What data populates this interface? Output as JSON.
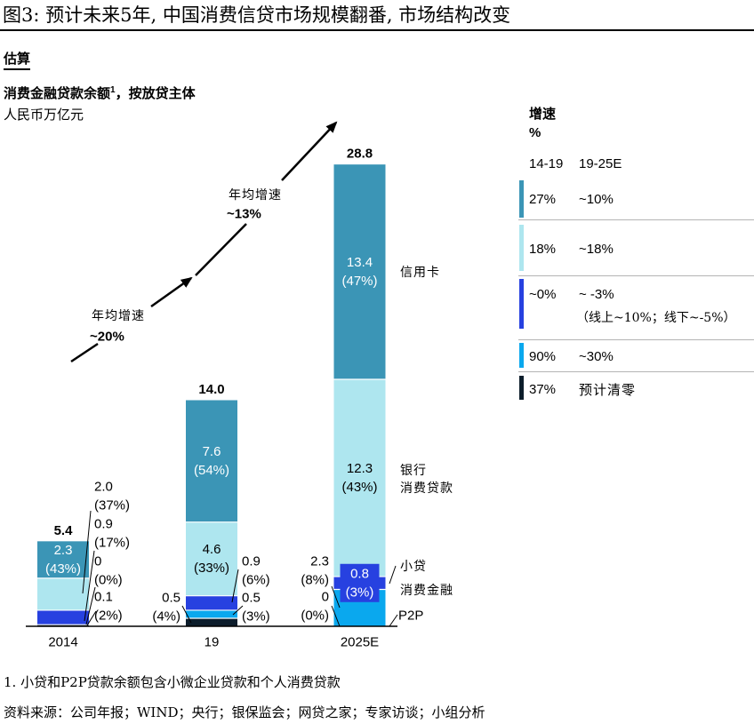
{
  "header": {
    "figure_title": "图3: 预计未来5年, 中国消费信贷市场规模翻番, 市场结构改变",
    "estimate_label": "估算"
  },
  "chart_data": {
    "type": "bar",
    "stacked": true,
    "title": "消费金融贷款余额",
    "title_footnote_ref": "1",
    "title_suffix": "，按放贷主体",
    "ylabel": "人民币万亿元",
    "xlabel": "",
    "ylim": [
      0,
      30
    ],
    "grid": false,
    "categories": [
      "2014",
      "19",
      "2025E"
    ],
    "totals": [
      "5.4",
      "14.0",
      "28.8"
    ],
    "series": [
      {
        "label_lines": [
          "P2P"
        ],
        "color": "#0c1d2b",
        "values": [
          0.1,
          0.5,
          0
        ],
        "labels": [
          "0.1",
          "0.5",
          "0"
        ],
        "shares": [
          "(2%)",
          "(4%)",
          "(0%)"
        ]
      },
      {
        "label_lines": [
          "消费金融"
        ],
        "color": "#0aa8ee",
        "values": [
          0,
          0.5,
          2.3
        ],
        "labels": [
          "0",
          "0.5",
          "2.3"
        ],
        "shares": [
          "(0%)",
          "(3%)",
          "(8%)"
        ]
      },
      {
        "label_lines": [
          "小贷"
        ],
        "color": "#2741e0",
        "values": [
          0.9,
          0.9,
          0.8
        ],
        "labels": [
          "0.9",
          "0.9",
          "0.8"
        ],
        "shares": [
          "(17%)",
          "(6%)",
          "(3%)"
        ]
      },
      {
        "label_lines": [
          "银行",
          "消费贷款"
        ],
        "color": "#aee6ef",
        "values": [
          2.0,
          4.6,
          12.3
        ],
        "labels": [
          "2.0",
          "4.6",
          "12.3"
        ],
        "shares": [
          "(37%)",
          "(33%)",
          "(43%)"
        ]
      },
      {
        "label_lines": [
          "信用卡"
        ],
        "color": "#3b95b6",
        "values": [
          2.3,
          7.6,
          13.4
        ],
        "labels": [
          "2.3",
          "7.6",
          "13.4"
        ],
        "shares": [
          "(43%)",
          "(54%)",
          "(47%)"
        ]
      }
    ],
    "annotations": [
      {
        "label": "年均增速",
        "value": "~20%"
      },
      {
        "label": "年均增速",
        "value": "~13%"
      }
    ],
    "growth_legend": {
      "title": "增速",
      "unit": "%",
      "headers": [
        "14-19",
        "19-25E"
      ],
      "rows": [
        {
          "color": "#3b95b6",
          "v1": "27%",
          "v2": "~10%"
        },
        {
          "color": "#aee6ef",
          "v1": "18%",
          "v2": "~18%"
        },
        {
          "color": "#2741e0",
          "v1": "~0%",
          "v2": "~ -3%",
          "note": "（线上~10%；线下~-5%）"
        },
        {
          "color": "#0aa8ee",
          "v1": "90%",
          "v2": "~30%"
        },
        {
          "color": "#0c1d2b",
          "v1": "37%",
          "v2": "预计清零"
        }
      ]
    }
  },
  "footer": {
    "footnote": "1. 小贷和P2P贷款余额包含小微企业贷款和个人消费贷款",
    "source": "资料来源：公司年报；WIND；央行；银保监会；网贷之家；专家访谈；小组分析"
  }
}
